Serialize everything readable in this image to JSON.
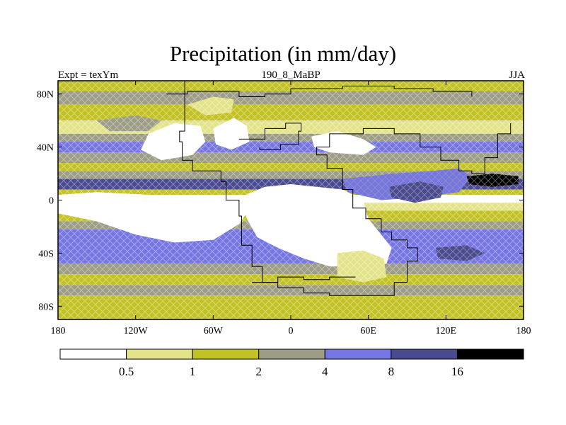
{
  "title": "Precipitation (in mm/day)",
  "subtitle_left": "Expt = texYm",
  "subtitle_center": "190_8_MaBP",
  "subtitle_right": "JJA",
  "chart_data": {
    "type": "heatmap",
    "variable": "Precipitation",
    "units": "mm/day",
    "xlim": [
      -180,
      180
    ],
    "ylim": [
      -90,
      90
    ],
    "x_ticks": [
      {
        "value": -180,
        "label": "180"
      },
      {
        "value": -120,
        "label": "120W"
      },
      {
        "value": -60,
        "label": "60W"
      },
      {
        "value": 0,
        "label": "0"
      },
      {
        "value": 60,
        "label": "60E"
      },
      {
        "value": 120,
        "label": "120E"
      },
      {
        "value": 180,
        "label": "180"
      }
    ],
    "y_ticks": [
      {
        "value": 80,
        "label": "80N"
      },
      {
        "value": 40,
        "label": "40N"
      },
      {
        "value": 0,
        "label": "0"
      },
      {
        "value": -40,
        "label": "40S"
      },
      {
        "value": -80,
        "label": "80S"
      }
    ],
    "colorbar": {
      "levels": [
        "0.5",
        "1",
        "2",
        "4",
        "8",
        "16"
      ],
      "colors": [
        "#ffffff",
        "#e3e38a",
        "#c2c224",
        "#9d9d86",
        "#7575e4",
        "#4a4a90",
        "#000000"
      ]
    },
    "zonal_bands": [
      {
        "lat_from": 90,
        "lat_to": 82,
        "color": "#c2c224"
      },
      {
        "lat_from": 82,
        "lat_to": 72,
        "color": "#9d9d86"
      },
      {
        "lat_from": 72,
        "lat_to": 60,
        "color": "#c2c224"
      },
      {
        "lat_from": 60,
        "lat_to": 50,
        "color": "#e3e38a"
      },
      {
        "lat_from": 50,
        "lat_to": 44,
        "color": "#9d9d86"
      },
      {
        "lat_from": 44,
        "lat_to": 36,
        "color": "#7575e4"
      },
      {
        "lat_from": 36,
        "lat_to": 28,
        "color": "#9d9d86"
      },
      {
        "lat_from": 28,
        "lat_to": 22,
        "color": "#c2c224"
      },
      {
        "lat_from": 22,
        "lat_to": 16,
        "color": "#9d9d86"
      },
      {
        "lat_from": 16,
        "lat_to": 8,
        "color": "#4a4a90"
      },
      {
        "lat_from": 8,
        "lat_to": 4,
        "color": "#c2c224"
      },
      {
        "lat_from": 4,
        "lat_to": -2,
        "color": "#ffffff"
      },
      {
        "lat_from": -2,
        "lat_to": -8,
        "color": "#e3e38a"
      },
      {
        "lat_from": -8,
        "lat_to": -16,
        "color": "#c2c224"
      },
      {
        "lat_from": -16,
        "lat_to": -22,
        "color": "#9d9d86"
      },
      {
        "lat_from": -22,
        "lat_to": -48,
        "color": "#7575e4"
      },
      {
        "lat_from": -48,
        "lat_to": -56,
        "color": "#9d9d86"
      },
      {
        "lat_from": -56,
        "lat_to": -64,
        "color": "#c2c224"
      },
      {
        "lat_from": -64,
        "lat_to": -72,
        "color": "#9d9d86"
      },
      {
        "lat_from": -72,
        "lat_to": -90,
        "color": "#c2c224"
      }
    ],
    "regions": [
      {
        "name": "east-pacific-dry",
        "color": "#ffffff",
        "points": [
          [
            -180,
            4
          ],
          [
            -150,
            6
          ],
          [
            -110,
            4
          ],
          [
            -70,
            2
          ],
          [
            -40,
            0
          ],
          [
            -30,
            -4
          ],
          [
            -40,
            -18
          ],
          [
            -60,
            -30
          ],
          [
            -90,
            -32
          ],
          [
            -120,
            -26
          ],
          [
            -150,
            -16
          ],
          [
            -180,
            -10
          ]
        ]
      },
      {
        "name": "south-atlantic-africa-dry",
        "color": "#ffffff",
        "points": [
          [
            -40,
            2
          ],
          [
            -20,
            10
          ],
          [
            0,
            12
          ],
          [
            20,
            10
          ],
          [
            40,
            8
          ],
          [
            56,
            0
          ],
          [
            60,
            -14
          ],
          [
            70,
            -26
          ],
          [
            78,
            -36
          ],
          [
            74,
            -48
          ],
          [
            56,
            -50
          ],
          [
            30,
            -50
          ],
          [
            10,
            -44
          ],
          [
            -10,
            -36
          ],
          [
            -26,
            -28
          ],
          [
            -34,
            -14
          ]
        ]
      },
      {
        "name": "north-american-dry",
        "color": "#ffffff",
        "points": [
          [
            -110,
            50
          ],
          [
            -90,
            58
          ],
          [
            -70,
            56
          ],
          [
            -66,
            44
          ],
          [
            -76,
            34
          ],
          [
            -100,
            30
          ],
          [
            -116,
            38
          ]
        ]
      },
      {
        "name": "north-atlantic-dry",
        "color": "#ffffff",
        "points": [
          [
            -60,
            54
          ],
          [
            -44,
            62
          ],
          [
            -34,
            56
          ],
          [
            -32,
            44
          ],
          [
            -46,
            38
          ],
          [
            -58,
            42
          ]
        ]
      },
      {
        "name": "asian-dry",
        "color": "#ffffff",
        "points": [
          [
            16,
            48
          ],
          [
            36,
            52
          ],
          [
            56,
            46
          ],
          [
            66,
            40
          ],
          [
            56,
            34
          ],
          [
            30,
            36
          ],
          [
            18,
            40
          ]
        ]
      },
      {
        "name": "south-africa-light",
        "color": "#e3e38a",
        "points": [
          [
            36,
            -40
          ],
          [
            56,
            -38
          ],
          [
            72,
            -44
          ],
          [
            74,
            -58
          ],
          [
            56,
            -62
          ],
          [
            36,
            -58
          ]
        ]
      },
      {
        "name": "asian-monsoon",
        "color": "#7575e4",
        "points": [
          [
            40,
            16
          ],
          [
            80,
            20
          ],
          [
            110,
            22
          ],
          [
            130,
            24
          ],
          [
            140,
            18
          ],
          [
            130,
            6
          ],
          [
            100,
            2
          ],
          [
            70,
            0
          ],
          [
            44,
            6
          ]
        ]
      },
      {
        "name": "west-pacific-wet",
        "color": "#4a4a90",
        "points": [
          [
            76,
            10
          ],
          [
            100,
            14
          ],
          [
            118,
            10
          ],
          [
            116,
            2
          ],
          [
            96,
            -2
          ],
          [
            78,
            2
          ]
        ]
      },
      {
        "name": "east-asia-heavy",
        "color": "#000000",
        "points": [
          [
            136,
            18
          ],
          [
            156,
            20
          ],
          [
            176,
            18
          ],
          [
            176,
            12
          ],
          [
            156,
            10
          ],
          [
            138,
            12
          ]
        ]
      },
      {
        "name": "southeast-pacific-wet",
        "color": "#4a4a90",
        "points": [
          [
            112,
            -36
          ],
          [
            136,
            -34
          ],
          [
            150,
            -40
          ],
          [
            136,
            -46
          ],
          [
            114,
            -44
          ]
        ]
      },
      {
        "name": "greenland-light",
        "color": "#e3e38a",
        "points": [
          [
            -80,
            72
          ],
          [
            -60,
            78
          ],
          [
            -44,
            76
          ],
          [
            -46,
            66
          ],
          [
            -66,
            64
          ]
        ]
      },
      {
        "name": "north-pacific-grey",
        "color": "#9d9d86",
        "points": [
          [
            -150,
            60
          ],
          [
            -120,
            64
          ],
          [
            -100,
            60
          ],
          [
            -110,
            52
          ],
          [
            -140,
            52
          ]
        ]
      }
    ],
    "coastlines": [
      [
        [
          -82,
          90
        ],
        [
          -82,
          52
        ],
        [
          -86,
          44
        ],
        [
          -84,
          30
        ],
        [
          -76,
          22
        ],
        [
          -54,
          14
        ],
        [
          -50,
          0
        ],
        [
          -40,
          -12
        ],
        [
          -38,
          -34
        ],
        [
          -30,
          -50
        ],
        [
          -22,
          -62
        ],
        [
          -10,
          -66
        ],
        [
          10,
          -70
        ],
        [
          30,
          -72
        ],
        [
          60,
          -72
        ],
        [
          80,
          -62
        ],
        [
          90,
          -46
        ],
        [
          98,
          -36
        ],
        [
          90,
          -30
        ],
        [
          78,
          -24
        ],
        [
          70,
          -14
        ],
        [
          58,
          -6
        ],
        [
          48,
          8
        ],
        [
          40,
          24
        ],
        [
          28,
          34
        ],
        [
          20,
          40
        ],
        [
          30,
          50
        ],
        [
          56,
          54
        ],
        [
          80,
          50
        ],
        [
          100,
          40
        ],
        [
          116,
          30
        ],
        [
          130,
          22
        ],
        [
          140,
          20
        ],
        [
          150,
          32
        ],
        [
          160,
          50
        ],
        [
          170,
          58
        ]
      ],
      [
        [
          -96,
          80
        ],
        [
          -80,
          82
        ],
        [
          -60,
          82
        ],
        [
          -40,
          78
        ],
        [
          -20,
          80
        ],
        [
          0,
          84
        ],
        [
          40,
          86
        ],
        [
          80,
          84
        ],
        [
          110,
          82
        ],
        [
          140,
          78
        ]
      ],
      [
        [
          -30,
          -62
        ],
        [
          -10,
          -58
        ],
        [
          10,
          -60
        ],
        [
          30,
          -58
        ],
        [
          50,
          -58
        ]
      ],
      [
        [
          -40,
          46
        ],
        [
          -20,
          54
        ],
        [
          -4,
          58
        ],
        [
          8,
          52
        ],
        [
          6,
          42
        ],
        [
          -8,
          38
        ],
        [
          -24,
          40
        ]
      ]
    ]
  }
}
